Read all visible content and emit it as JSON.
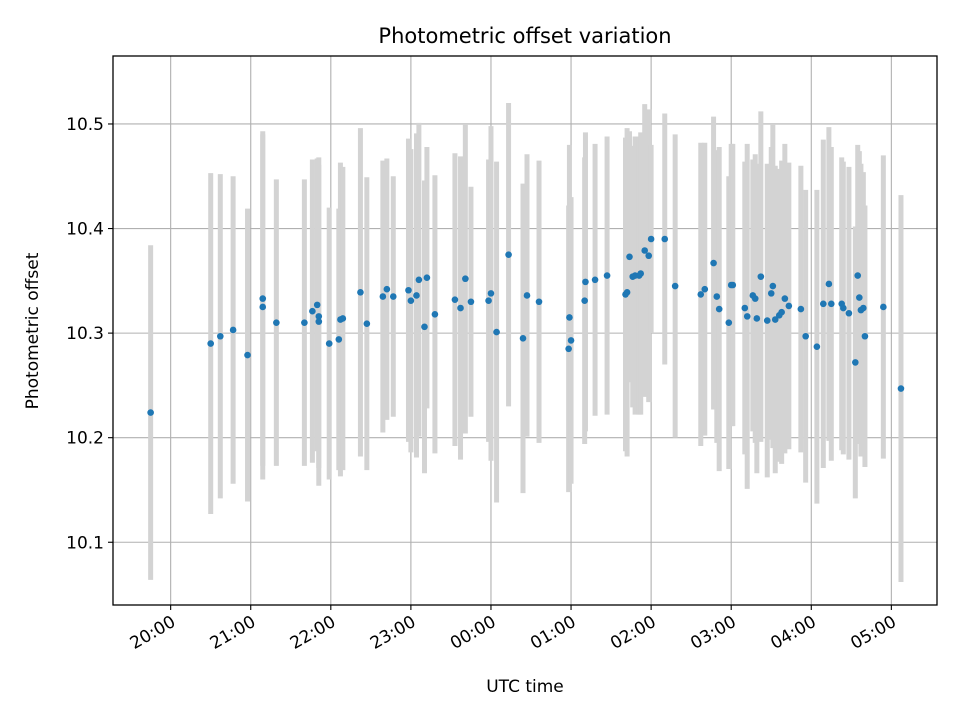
{
  "chart_data": {
    "type": "scatter",
    "title": "Photometric offset variation",
    "xlabel": "UTC time",
    "ylabel": "Photometric offset",
    "x_tick_labels": [
      "20:00",
      "21:00",
      "22:00",
      "23:00",
      "00:00",
      "01:00",
      "02:00",
      "03:00",
      "04:00",
      "05:00"
    ],
    "y_ticks": [
      10.1,
      10.2,
      10.3,
      10.4,
      10.5
    ],
    "ylim": [
      10.04,
      10.565
    ],
    "xlim_hours": [
      -0.72,
      9.57
    ],
    "grid": true,
    "colors": {
      "point": "#1f77b4",
      "errorbar": "#d3d3d3",
      "grid": "#b0b0b0"
    },
    "series": [
      {
        "x_hours": [
          -0.25,
          0.5,
          0.62,
          0.78,
          0.96,
          1.15,
          1.15,
          1.32,
          1.67,
          1.77,
          1.83,
          1.85,
          1.85,
          1.98,
          2.1,
          2.12,
          2.15,
          2.37,
          2.45,
          2.65,
          2.7,
          2.78,
          2.97,
          3.0,
          3.07,
          3.1,
          3.17,
          3.2,
          3.3,
          3.55,
          3.62,
          3.68,
          3.75,
          3.97,
          4.0,
          4.07,
          4.22,
          4.4,
          4.45,
          4.6,
          4.97,
          4.98,
          5.0,
          5.17,
          5.18,
          5.3,
          5.45,
          5.68,
          5.7,
          5.73,
          5.77,
          5.8,
          5.85,
          5.87,
          5.92,
          5.97,
          6.0,
          6.17,
          6.3,
          6.62,
          6.67,
          6.78,
          6.82,
          6.85,
          6.97,
          7.0,
          7.02,
          7.17,
          7.2,
          7.27,
          7.3,
          7.32,
          7.37,
          7.45,
          7.5,
          7.52,
          7.55,
          7.6,
          7.63,
          7.67,
          7.72,
          7.87,
          7.93,
          8.07,
          8.15,
          8.22,
          8.25,
          8.38,
          8.4,
          8.47,
          8.55,
          8.58,
          8.6,
          8.62,
          8.65,
          8.67,
          8.9,
          9.12
        ],
        "values": [
          10.224,
          10.29,
          10.297,
          10.303,
          10.279,
          10.333,
          10.325,
          10.31,
          10.31,
          10.321,
          10.327,
          10.316,
          10.311,
          10.29,
          10.294,
          10.313,
          10.314,
          10.339,
          10.309,
          10.335,
          10.342,
          10.335,
          10.341,
          10.331,
          10.336,
          10.351,
          10.306,
          10.353,
          10.318,
          10.332,
          10.324,
          10.352,
          10.33,
          10.331,
          10.338,
          10.301,
          10.375,
          10.295,
          10.336,
          10.33,
          10.285,
          10.315,
          10.293,
          10.331,
          10.349,
          10.351,
          10.355,
          10.337,
          10.339,
          10.373,
          10.354,
          10.355,
          10.355,
          10.357,
          10.379,
          10.374,
          10.39,
          10.39,
          10.345,
          10.337,
          10.342,
          10.367,
          10.335,
          10.323,
          10.31,
          10.346,
          10.346,
          10.324,
          10.316,
          10.336,
          10.333,
          10.314,
          10.354,
          10.312,
          10.338,
          10.345,
          10.313,
          10.317,
          10.32,
          10.333,
          10.326,
          10.323,
          10.297,
          10.287,
          10.328,
          10.347,
          10.328,
          10.328,
          10.324,
          10.319,
          10.272,
          10.355,
          10.334,
          10.322,
          10.324,
          10.297,
          10.325,
          10.247
        ],
        "errors": [
          0.16,
          0.163,
          0.155,
          0.147,
          0.14,
          0.16,
          0.165,
          0.137,
          0.137,
          0.145,
          0.14,
          0.145,
          0.157,
          0.13,
          0.125,
          0.15,
          0.145,
          0.157,
          0.14,
          0.13,
          0.125,
          0.115,
          0.145,
          0.145,
          0.155,
          0.15,
          0.14,
          0.125,
          0.133,
          0.14,
          0.145,
          0.148,
          0.11,
          0.135,
          0.16,
          0.163,
          0.145,
          0.148,
          0.135,
          0.135,
          0.137,
          0.165,
          0.137,
          0.137,
          0.143,
          0.13,
          0.133,
          0.15,
          0.157,
          0.12,
          0.125,
          0.133,
          0.133,
          0.135,
          0.14,
          0.14,
          0.09,
          0.12,
          0.145,
          0.145,
          0.14,
          0.14,
          0.14,
          0.155,
          0.14,
          0.135,
          0.135,
          0.14,
          0.165,
          0.13,
          0.138,
          0.148,
          0.158,
          0.15,
          0.14,
          0.155,
          0.147,
          0.14,
          0.145,
          0.148,
          0.137,
          0.137,
          0.14,
          0.15,
          0.157,
          0.15,
          0.15,
          0.14,
          0.14,
          0.14,
          0.13,
          0.125,
          0.14,
          0.14,
          0.13,
          0.125,
          0.145,
          0.185
        ]
      }
    ]
  }
}
